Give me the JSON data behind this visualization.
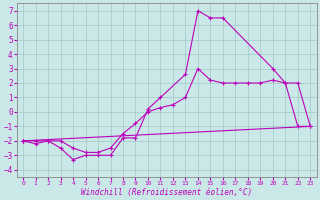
{
  "xlabel": "Windchill (Refroidissement éolien,°C)",
  "background_color": "#cbe8e8",
  "grid_color": "#a0c8c8",
  "line_color": "#bb00bb",
  "xlim": [
    -0.5,
    23.5
  ],
  "ylim": [
    -4.5,
    7.5
  ],
  "xticks": [
    0,
    1,
    2,
    3,
    4,
    5,
    6,
    7,
    8,
    9,
    10,
    11,
    12,
    13,
    14,
    15,
    16,
    17,
    18,
    19,
    20,
    21,
    22,
    23
  ],
  "yticks": [
    -4,
    -3,
    -2,
    -1,
    0,
    1,
    2,
    3,
    4,
    5,
    6,
    7
  ],
  "series": [
    {
      "x": [
        0,
        1,
        2,
        3,
        4,
        5,
        6,
        7,
        8,
        9,
        10,
        11,
        13,
        14,
        15,
        16,
        20,
        21,
        22,
        23
      ],
      "y": [
        -2,
        -2.2,
        -2,
        -2.5,
        -3.3,
        -3,
        -3,
        -3,
        -1.8,
        -1.8,
        0.2,
        1.0,
        2.6,
        7.0,
        6.5,
        6.5,
        3.0,
        2.0,
        -1.0,
        -1.0
      ]
    },
    {
      "x": [
        0,
        23
      ],
      "y": [
        -2,
        -1
      ]
    },
    {
      "x": [
        0,
        1,
        2,
        3,
        4,
        5,
        6,
        7,
        8,
        9,
        10,
        11,
        12,
        13,
        14,
        15,
        16,
        17,
        18,
        19,
        20,
        21,
        22,
        23
      ],
      "y": [
        -2,
        -2,
        -2,
        -2,
        -2.5,
        -2.8,
        -2.8,
        -2.5,
        -1.5,
        -0.8,
        0.0,
        0.3,
        0.5,
        1.0,
        3.0,
        2.2,
        2.0,
        2.0,
        2.0,
        2.0,
        2.2,
        2.0,
        2.0,
        -1.0
      ]
    }
  ]
}
